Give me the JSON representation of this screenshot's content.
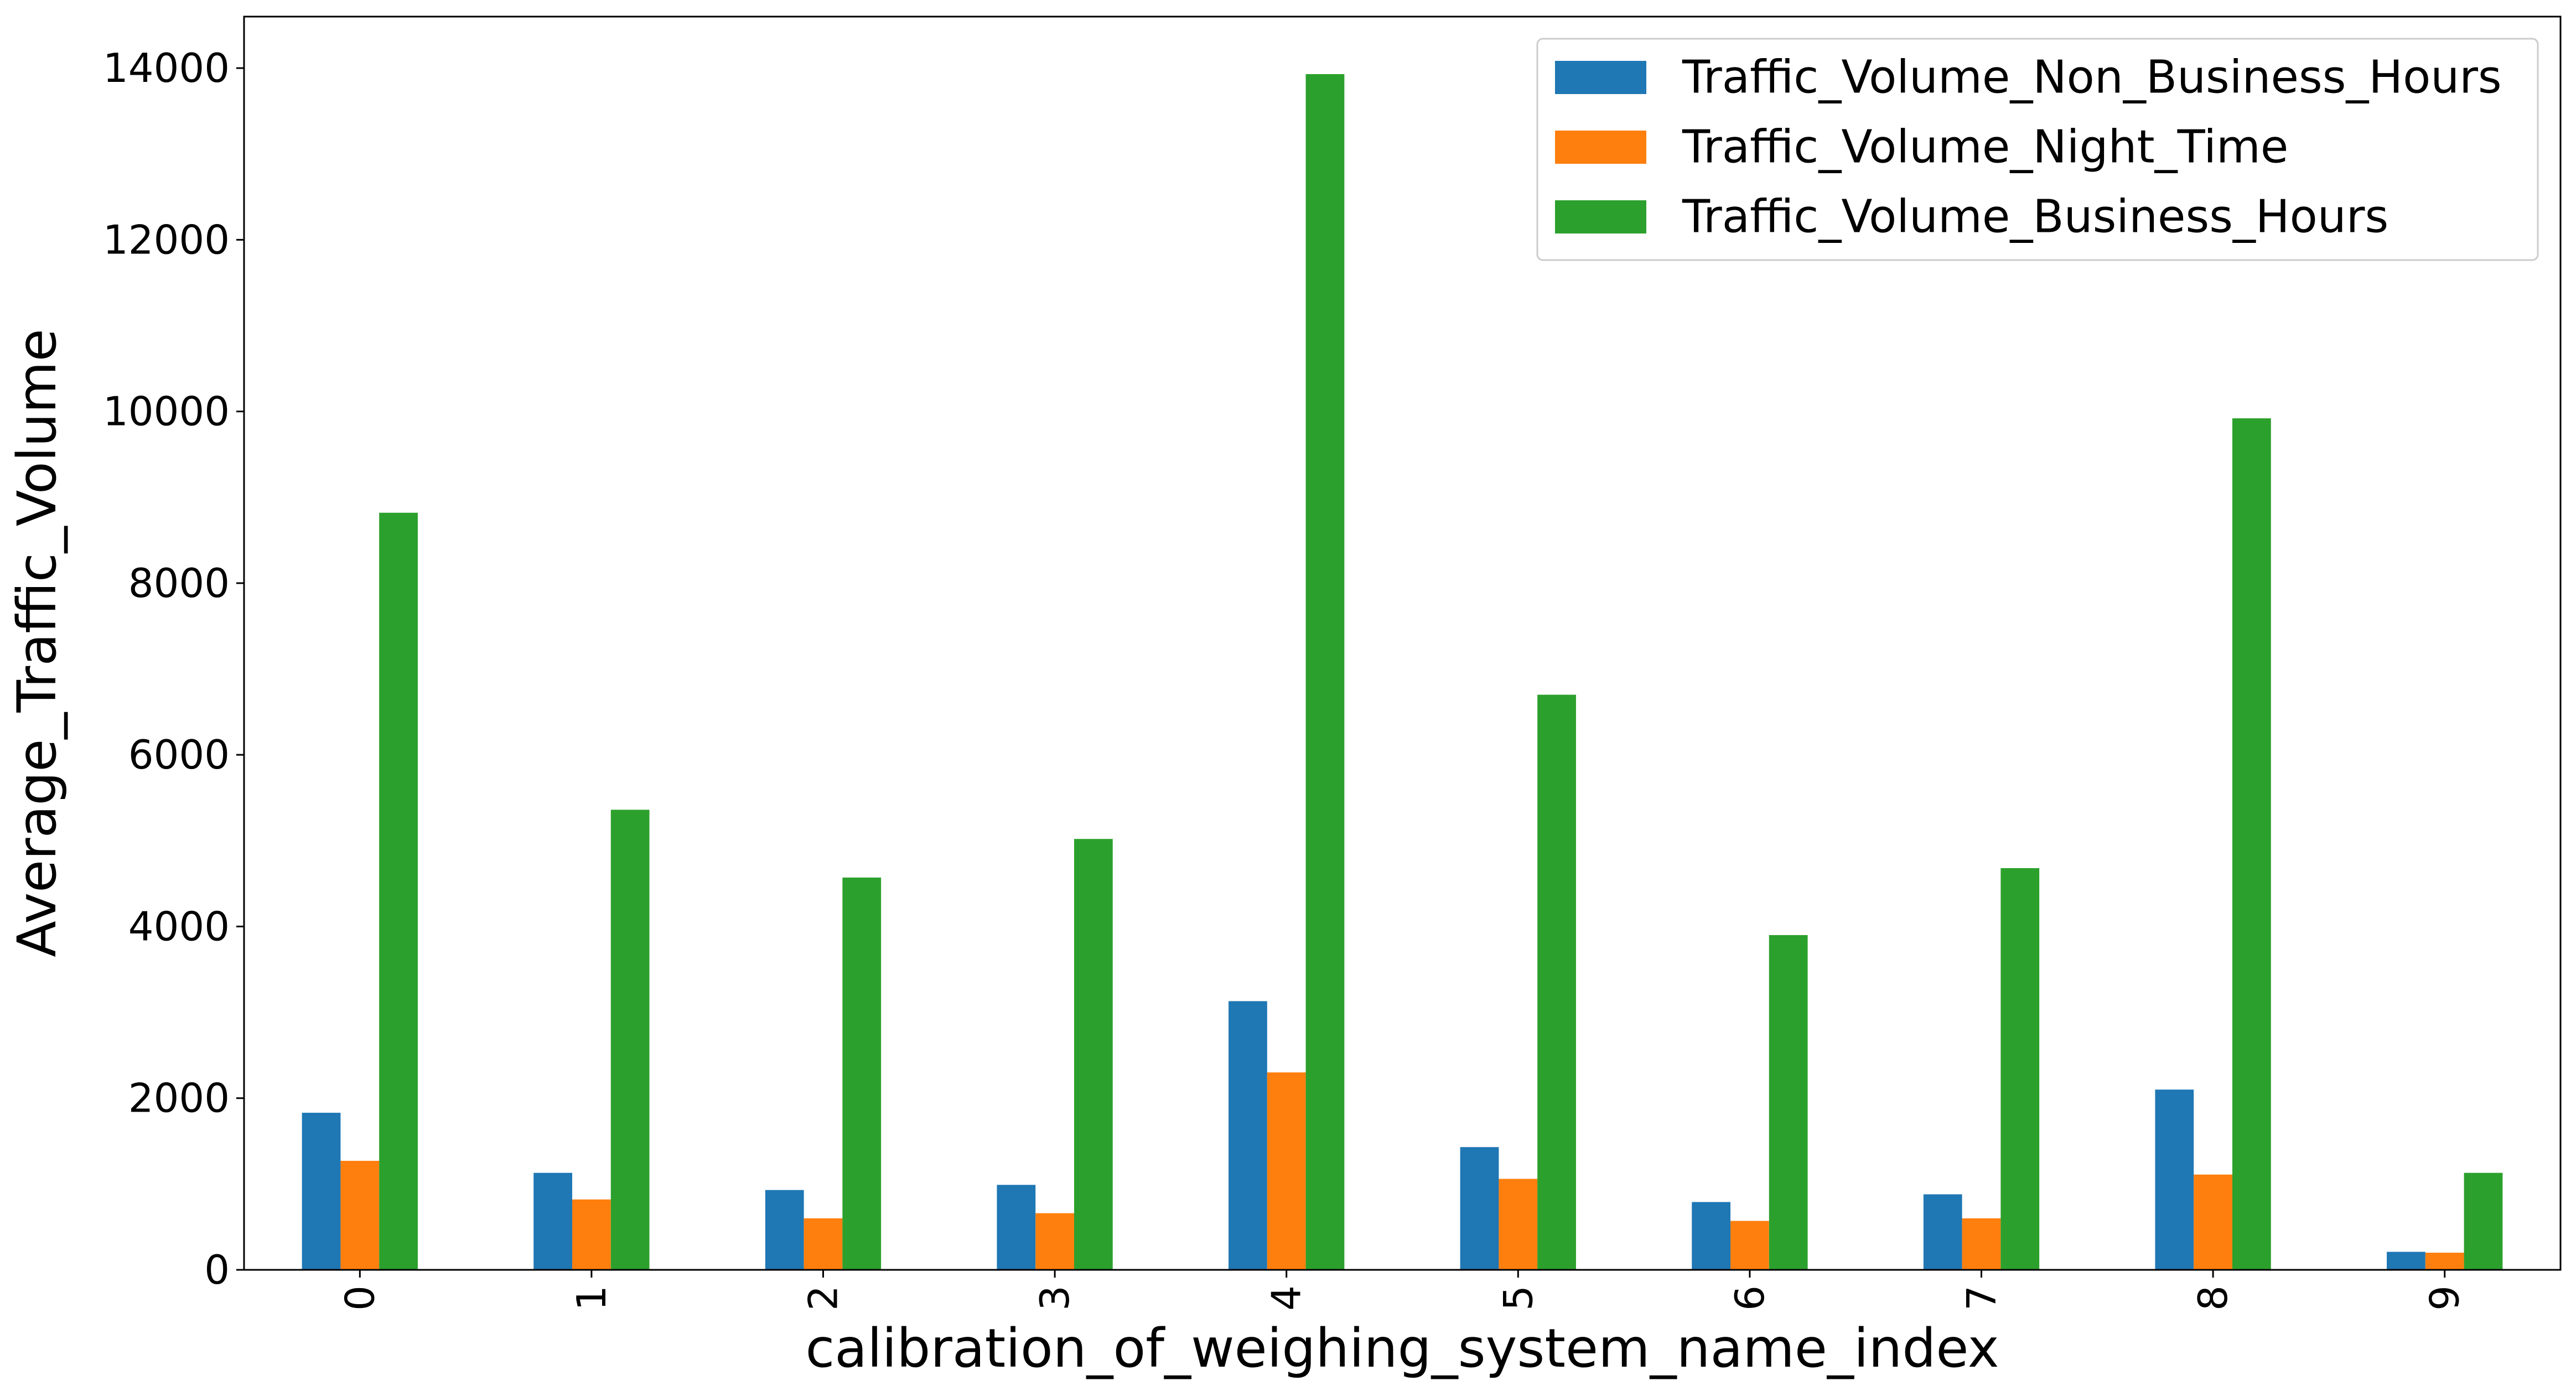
{
  "chart_data": {
    "type": "bar",
    "title": "",
    "xlabel": "calibration_of_weighing_system_name_index",
    "ylabel": "Average_Traffic_Volume",
    "categories": [
      "0",
      "1",
      "2",
      "3",
      "4",
      "5",
      "6",
      "7",
      "8",
      "9"
    ],
    "series": [
      {
        "name": "Traffic_Volume_Non_Business_Hours",
        "color": "#1f77b4",
        "values": [
          1830,
          1130,
          930,
          990,
          3130,
          1430,
          790,
          880,
          2100,
          210
        ]
      },
      {
        "name": "Traffic_Volume_Night_Time",
        "color": "#ff7f0e",
        "values": [
          1270,
          820,
          600,
          660,
          2300,
          1060,
          570,
          600,
          1110,
          200
        ]
      },
      {
        "name": "Traffic_Volume_Business_Hours",
        "color": "#2ca02c",
        "values": [
          8820,
          5360,
          4570,
          5020,
          13930,
          6700,
          3900,
          4680,
          9920,
          1130
        ]
      }
    ],
    "ylim": [
      0,
      14600
    ],
    "yticks": [
      0,
      2000,
      4000,
      6000,
      8000,
      10000,
      12000,
      14000
    ],
    "grid": false,
    "legend_position": "top-right"
  }
}
